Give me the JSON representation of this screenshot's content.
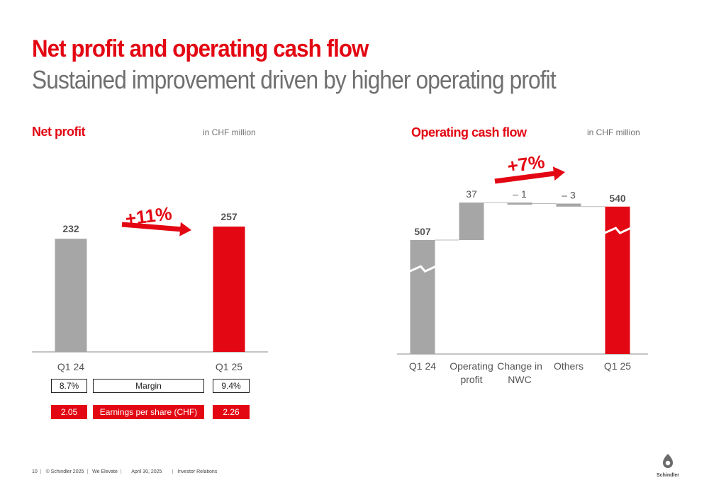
{
  "header": {
    "title": "Net profit and operating cash flow",
    "subtitle": "Sustained improvement driven by higher operating profit"
  },
  "net_profit": {
    "section_title": "Net profit",
    "unit": "in CHF million",
    "growth_label": "+11%",
    "margin_row": {
      "left": "8.7%",
      "label": "Margin",
      "right": "9.4%"
    },
    "eps_row": {
      "left": "2.05",
      "label": "Earnings per share (CHF)",
      "right": "2.26"
    }
  },
  "cash_flow": {
    "section_title": "Operating cash flow",
    "unit": "in CHF million",
    "growth_label": "+7%"
  },
  "colors": {
    "accent": "#e30613",
    "bar_gray": "#a6a6a6",
    "text_gray": "#707070"
  },
  "footer": {
    "page": "10",
    "copyright": "© Schindler 2025",
    "tagline": "We Elevate",
    "date": "April 30, 2025",
    "department": "Investor Relations"
  },
  "logo": {
    "name": "schindler-logo",
    "text": "Schindler"
  },
  "chart_data": [
    {
      "type": "bar",
      "categories": [
        "Q1 24",
        "Q1 25"
      ],
      "values": [
        232,
        257
      ],
      "data_labels": [
        "232",
        "257"
      ],
      "colors": [
        "#a6a6a6",
        "#e30613"
      ]
    },
    {
      "type": "waterfall",
      "categories": [
        "Q1 24",
        "Operating profit",
        "Change in NWC",
        "Others",
        "Q1 25"
      ],
      "category_lines": [
        [
          "Q1 24"
        ],
        [
          "Operating",
          "profit"
        ],
        [
          "Change in",
          "NWC"
        ],
        [
          "Others"
        ],
        [
          "Q1 25"
        ]
      ],
      "values": [
        507,
        37,
        -1,
        -3,
        540
      ],
      "data_labels": [
        "507",
        "37",
        "– 1",
        "– 3",
        "540"
      ],
      "kinds": [
        "total",
        "delta",
        "delta",
        "delta",
        "total"
      ],
      "axis_break": true
    }
  ]
}
